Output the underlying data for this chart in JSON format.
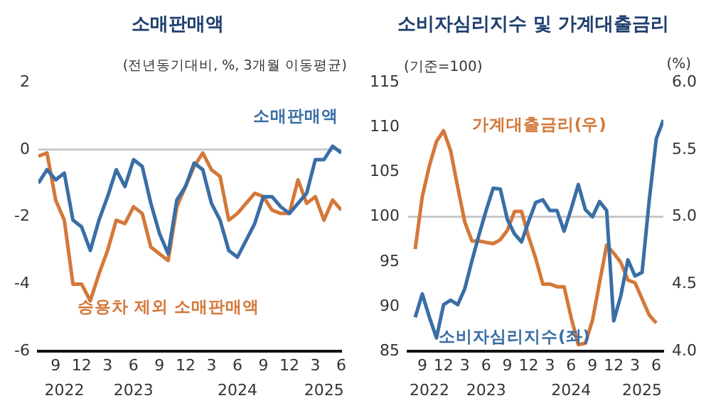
{
  "chart_data": [
    {
      "type": "line",
      "title": "소매판매액",
      "subtitle": "(전년동기대비, %, 3개월 이동평균)",
      "x": [
        "2022-07",
        "2022-08",
        "2022-09",
        "2022-10",
        "2022-11",
        "2022-12",
        "2023-01",
        "2023-02",
        "2023-03",
        "2023-04",
        "2023-05",
        "2023-06",
        "2023-07",
        "2023-08",
        "2023-09",
        "2023-10",
        "2023-11",
        "2023-12",
        "2024-01",
        "2024-02",
        "2024-03",
        "2024-04",
        "2024-05",
        "2024-06",
        "2024-07",
        "2024-08",
        "2024-09",
        "2024-10",
        "2024-11",
        "2024-12",
        "2025-01",
        "2025-02",
        "2025-03",
        "2025-04",
        "2025-05",
        "2025-06"
      ],
      "series": [
        {
          "name": "소매판매액",
          "color": "#3a6ea5",
          "values": [
            -1.0,
            -0.6,
            -0.9,
            -0.7,
            -2.1,
            -2.3,
            -3.0,
            -2.1,
            -1.4,
            -0.6,
            -1.1,
            -0.3,
            -0.5,
            -1.6,
            -2.5,
            -3.1,
            -1.5,
            -1.1,
            -0.4,
            -0.6,
            -1.6,
            -2.1,
            -3.0,
            -3.2,
            -2.7,
            -2.2,
            -1.4,
            -1.4,
            -1.7,
            -1.9,
            -1.6,
            -1.3,
            -0.3,
            -0.3,
            0.1,
            -0.1
          ]
        },
        {
          "name": "승용차 제외 소매판매액",
          "color": "#d4783a",
          "values": [
            -0.2,
            -0.1,
            -1.5,
            -2.1,
            -4.0,
            -4.0,
            -4.5,
            -3.7,
            -3.0,
            -2.1,
            -2.2,
            -1.7,
            -1.9,
            -2.9,
            -3.1,
            -3.3,
            -1.7,
            -1.1,
            -0.5,
            -0.1,
            -0.6,
            -0.8,
            -2.1,
            -1.9,
            -1.6,
            -1.3,
            -1.4,
            -1.8,
            -1.9,
            -1.9,
            -0.9,
            -1.6,
            -1.4,
            -2.1,
            -1.5,
            -1.8
          ]
        }
      ],
      "xlim": [
        "2022-07",
        "2025-06"
      ],
      "xticks": [
        {
          "value": "2022-09",
          "label": "9"
        },
        {
          "value": "2022-12",
          "label": "12"
        },
        {
          "value": "2023-03",
          "label": "3"
        },
        {
          "value": "2023-06",
          "label": "6"
        },
        {
          "value": "2023-09",
          "label": "9"
        },
        {
          "value": "2023-12",
          "label": "12"
        },
        {
          "value": "2024-03",
          "label": "3"
        },
        {
          "value": "2024-06",
          "label": "6"
        },
        {
          "value": "2024-09",
          "label": "9"
        },
        {
          "value": "2024-12",
          "label": "12"
        },
        {
          "value": "2025-03",
          "label": "3"
        },
        {
          "value": "2025-06",
          "label": "6"
        }
      ],
      "x2lim": [
        "2022-07",
        "2025-06"
      ],
      "x2ticks": [
        {
          "value": "2022-10",
          "label": "2022"
        },
        {
          "value": "2023-06",
          "label": "2023"
        },
        {
          "value": "2024-06",
          "label": "2024"
        },
        {
          "value": "2025-04",
          "label": "2025"
        }
      ],
      "ylim": [
        -6,
        2
      ],
      "yticks": [
        -6,
        -4,
        -2,
        0,
        2
      ],
      "ref_lines": [
        {
          "axis": "y",
          "value": 0,
          "color": "#c8c8c8"
        }
      ],
      "grid": false,
      "marker": "none"
    },
    {
      "type": "line",
      "title": "소비자심리지수 및 가계대출금리",
      "ylabel": "(기준=100)",
      "y2label": "(%)",
      "x": [
        "2022-08",
        "2022-09",
        "2022-10",
        "2022-11",
        "2022-12",
        "2023-01",
        "2023-02",
        "2023-03",
        "2023-04",
        "2023-05",
        "2023-06",
        "2023-07",
        "2023-08",
        "2023-09",
        "2023-10",
        "2023-11",
        "2023-12",
        "2024-01",
        "2024-02",
        "2024-03",
        "2024-04",
        "2024-05",
        "2024-06",
        "2024-07",
        "2024-08",
        "2024-09",
        "2024-10",
        "2024-11",
        "2024-12",
        "2025-01",
        "2025-02",
        "2025-03",
        "2025-04",
        "2025-05",
        "2025-06",
        "2025-07"
      ],
      "series": [
        {
          "name": "소비자심리지수(좌)",
          "color": "#3a6ea5",
          "values": [
            88.8,
            91.4,
            88.8,
            86.5,
            90.2,
            90.7,
            90.2,
            92.0,
            95.1,
            98.0,
            100.7,
            103.2,
            103.1,
            99.7,
            98.1,
            97.2,
            99.5,
            101.6,
            101.9,
            100.7,
            100.7,
            98.4,
            100.9,
            103.6,
            100.8,
            100.0,
            101.7,
            100.7,
            88.4,
            91.2,
            95.2,
            93.4,
            93.8,
            101.8,
            108.7,
            110.8
          ]
        },
        {
          "name": "가계대출금리(우)",
          "color": "#d4783a",
          "axis": "y2",
          "values": [
            4.76,
            5.15,
            5.38,
            5.56,
            5.64,
            5.49,
            5.22,
            4.96,
            4.82,
            4.82,
            4.81,
            4.8,
            4.83,
            4.9,
            5.04,
            5.04,
            4.85,
            4.69,
            4.5,
            4.5,
            4.48,
            4.48,
            4.25,
            4.05,
            4.06,
            4.23,
            4.51,
            4.79,
            4.73,
            4.66,
            4.53,
            4.51,
            4.39,
            4.27,
            4.21,
            null
          ]
        }
      ],
      "xlim": [
        "2022-07",
        "2025-07"
      ],
      "xticks": [
        {
          "value": "2022-09",
          "label": "9"
        },
        {
          "value": "2022-12",
          "label": "12"
        },
        {
          "value": "2023-03",
          "label": "3"
        },
        {
          "value": "2023-06",
          "label": "6"
        },
        {
          "value": "2023-09",
          "label": "9"
        },
        {
          "value": "2023-12",
          "label": "12"
        },
        {
          "value": "2024-03",
          "label": "3"
        },
        {
          "value": "2024-06",
          "label": "6"
        },
        {
          "value": "2024-09",
          "label": "9"
        },
        {
          "value": "2024-12",
          "label": "12"
        },
        {
          "value": "2025-03",
          "label": "3"
        },
        {
          "value": "2025-06",
          "label": "6"
        }
      ],
      "x2lim": [
        "2022-07",
        "2025-07"
      ],
      "x2ticks": [
        {
          "value": "2022-10",
          "label": "2022"
        },
        {
          "value": "2023-06",
          "label": "2023"
        },
        {
          "value": "2024-06",
          "label": "2024"
        },
        {
          "value": "2025-04",
          "label": "2025"
        }
      ],
      "ylim": [
        85,
        115
      ],
      "yticks": [
        85,
        90,
        95,
        100,
        105,
        110,
        115
      ],
      "y2lim": [
        4.0,
        6.0
      ],
      "y2ticks": [
        {
          "value": 4.0,
          "label": "4.0"
        },
        {
          "value": 4.5,
          "label": "4.5"
        },
        {
          "value": 5.0,
          "label": "5.0"
        },
        {
          "value": 5.5,
          "label": "5.5"
        },
        {
          "value": 6.0,
          "label": "6.0"
        }
      ],
      "ref_lines": [
        {
          "axis": "y",
          "value": 100,
          "color": "#c8c8c8"
        }
      ],
      "grid": false,
      "marker": "none"
    }
  ]
}
